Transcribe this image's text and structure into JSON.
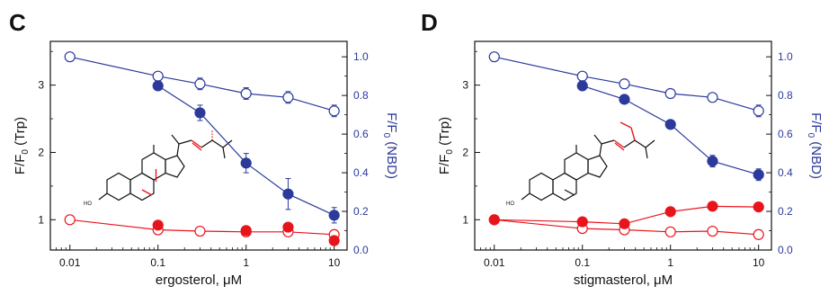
{
  "colors": {
    "red": "#e8141c",
    "blue": "#2b3a9b",
    "black": "#111111"
  },
  "chart_data": [
    {
      "panel": "C",
      "type": "scatter",
      "xlabel_text": "ergosterol, ",
      "xlabel_unit": "μM",
      "ylabel_left": {
        "main": "F/F",
        "sub": "0",
        "tail": " (Trp)"
      },
      "ylabel_right": {
        "main": "F/F",
        "sub": "0",
        "tail": " (NBD)"
      },
      "xscale": "log",
      "xlim": [
        0.006,
        14
      ],
      "xticks": [
        "0.01",
        "0.1",
        "1",
        "10"
      ],
      "ylim_left": [
        0.55,
        3.65
      ],
      "yticks_left": [
        "1",
        "2",
        "3"
      ],
      "ylim_right": [
        0,
        1.08
      ],
      "yticks_right": [
        "0.0",
        "0.2",
        "0.4",
        "0.6",
        "0.8",
        "1.0"
      ],
      "molecule": "ergosterol structure",
      "series": [
        {
          "axis": "right",
          "color": "blue",
          "filled": false,
          "connected": true,
          "x": [
            0.01,
            0.1,
            0.3,
            1,
            3,
            10
          ],
          "y": [
            1.0,
            0.9,
            0.86,
            0.81,
            0.79,
            0.72
          ],
          "err": [
            0,
            0.02,
            0.03,
            0.03,
            0.03,
            0.03
          ]
        },
        {
          "axis": "right",
          "color": "blue",
          "filled": true,
          "connected": true,
          "x": [
            0.1,
            0.3,
            1,
            3,
            10
          ],
          "y": [
            0.85,
            0.71,
            0.45,
            0.29,
            0.18
          ],
          "err": [
            0.01,
            0.04,
            0.05,
            0.08,
            0.04
          ]
        },
        {
          "axis": "left",
          "color": "red",
          "filled": false,
          "connected": true,
          "x": [
            0.01,
            0.1,
            0.3,
            1,
            3,
            10
          ],
          "y": [
            1.0,
            0.85,
            0.83,
            0.82,
            0.82,
            0.78
          ],
          "err": [
            0,
            0.04,
            0.03,
            0.03,
            0.03,
            0.04
          ]
        },
        {
          "axis": "left",
          "color": "red",
          "filled": true,
          "connected": false,
          "x": [
            0.1,
            1,
            3,
            10
          ],
          "y": [
            0.92,
            0.84,
            0.89,
            0.69
          ],
          "err": [
            0,
            0,
            0,
            0
          ]
        }
      ]
    },
    {
      "panel": "D",
      "type": "scatter",
      "xlabel_text": "stigmasterol, ",
      "xlabel_unit": "μM",
      "ylabel_left": {
        "main": "F/F",
        "sub": "0",
        "tail": " (Trp)"
      },
      "ylabel_right": {
        "main": "F/F",
        "sub": "0",
        "tail": " (NBD)"
      },
      "xscale": "log",
      "xlim": [
        0.006,
        14
      ],
      "xticks": [
        "0.01",
        "0.1",
        "1",
        "10"
      ],
      "ylim_left": [
        0.55,
        3.65
      ],
      "yticks_left": [
        "1",
        "2",
        "3"
      ],
      "ylim_right": [
        0,
        1.08
      ],
      "yticks_right": [
        "0.0",
        "0.2",
        "0.4",
        "0.6",
        "0.8",
        "1.0"
      ],
      "molecule": "stigmasterol structure",
      "series": [
        {
          "axis": "right",
          "color": "blue",
          "filled": false,
          "connected": true,
          "x": [
            0.01,
            0.1,
            0.3,
            1,
            3,
            10
          ],
          "y": [
            1.0,
            0.9,
            0.86,
            0.81,
            0.79,
            0.72
          ],
          "err": [
            0,
            0.02,
            0.02,
            0.02,
            0.02,
            0.03
          ]
        },
        {
          "axis": "right",
          "color": "blue",
          "filled": true,
          "connected": true,
          "x": [
            0.1,
            0.3,
            1,
            3,
            10
          ],
          "y": [
            0.85,
            0.78,
            0.65,
            0.46,
            0.39
          ],
          "err": [
            0.01,
            0.01,
            0.01,
            0.03,
            0.03
          ]
        },
        {
          "axis": "left",
          "color": "red",
          "filled": false,
          "connected": true,
          "x": [
            0.01,
            0.1,
            0.3,
            1,
            3,
            10
          ],
          "y": [
            1.0,
            0.87,
            0.85,
            0.82,
            0.83,
            0.78
          ],
          "err": [
            0,
            0.04,
            0.03,
            0.03,
            0.03,
            0.03
          ]
        },
        {
          "axis": "left",
          "color": "red",
          "filled": true,
          "connected": true,
          "x": [
            0.01,
            0.1,
            0.3,
            1,
            3,
            10
          ],
          "y": [
            1.0,
            0.97,
            0.94,
            1.12,
            1.2,
            1.19
          ],
          "err": [
            0,
            0,
            0,
            0,
            0,
            0
          ]
        }
      ]
    }
  ]
}
